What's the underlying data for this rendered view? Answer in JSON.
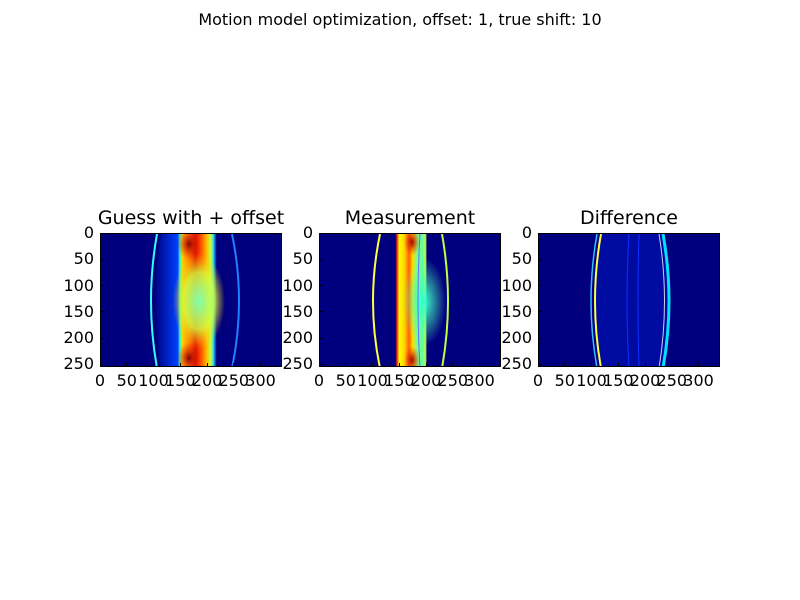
{
  "figure": {
    "suptitle": "Motion model optimization, offset:  1, true shift: 10"
  },
  "colors": {
    "background": "#ffffff",
    "jet_dark_blue": "#00007f",
    "jet_blue": "#0000ff",
    "jet_cyan": "#00ffff",
    "jet_green": "#7fff7f",
    "jet_yellow": "#ffff00",
    "jet_orange": "#ff7f00",
    "jet_red": "#ff0000",
    "jet_dark_red": "#7f0000"
  },
  "chart_data": [
    {
      "type": "heatmap",
      "title": "Guess with + offset",
      "colormap": "jet",
      "xlim": [
        0,
        340
      ],
      "ylim": [
        255,
        0
      ],
      "xticks": [
        "0",
        "50",
        "100",
        "150",
        "200",
        "250",
        "300"
      ],
      "yticks": [
        "0",
        "50",
        "100",
        "150",
        "200",
        "250"
      ],
      "grid": false
    },
    {
      "type": "heatmap",
      "title": "Measurement",
      "colormap": "jet",
      "xlim": [
        0,
        340
      ],
      "ylim": [
        255,
        0
      ],
      "xticks": [
        "0",
        "50",
        "100",
        "150",
        "200",
        "250",
        "300"
      ],
      "yticks": [
        "0",
        "50",
        "100",
        "150",
        "200",
        "250"
      ],
      "grid": false
    },
    {
      "type": "heatmap",
      "title": "Difference",
      "colormap": "jet",
      "xlim": [
        0,
        340
      ],
      "ylim": [
        255,
        0
      ],
      "xticks": [
        "0",
        "50",
        "100",
        "150",
        "200",
        "250",
        "300"
      ],
      "yticks": [
        "0",
        "50",
        "100",
        "150",
        "200",
        "250"
      ],
      "grid": false
    }
  ]
}
